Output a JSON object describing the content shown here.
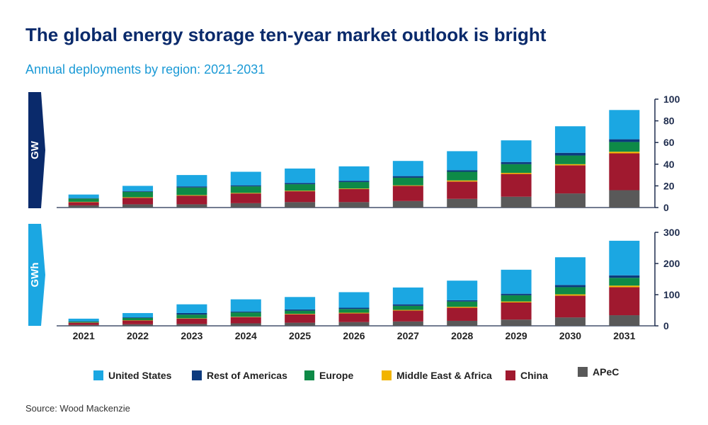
{
  "title": "The global energy storage ten-year market outlook is bright",
  "subtitle": "Annual deployments  by region: 2021-2031",
  "source": "Source: Wood Mackenzie",
  "colors": {
    "United States": "#1ba7e2",
    "Rest of Americas": "#0c3a7d",
    "Europe": "#0e8a47",
    "Middle East & Africa": "#f2b400",
    "China": "#a0192f",
    "APeC": "#595959"
  },
  "legend": [
    "United States",
    "Rest of Americas",
    "Europe",
    "Middle East & Africa",
    "China",
    "APeC"
  ],
  "chart_data": [
    {
      "type": "bar",
      "stacked": true,
      "unit_label": "GW",
      "categories": [
        "2021",
        "2022",
        "2023",
        "2024",
        "2025",
        "2026",
        "2027",
        "2028",
        "2029",
        "2030",
        "2031"
      ],
      "ylim": [
        0,
        100
      ],
      "yticks": [
        0,
        20,
        40,
        60,
        80,
        100
      ],
      "series": [
        {
          "name": "APeC",
          "values": [
            2,
            3,
            3,
            4,
            5,
            5,
            6,
            8,
            10,
            13,
            16
          ]
        },
        {
          "name": "China",
          "values": [
            3,
            6,
            8,
            9,
            10,
            12,
            14,
            16,
            21,
            26,
            34
          ]
        },
        {
          "name": "Middle East & Africa",
          "values": [
            0.3,
            0.5,
            0.5,
            0.5,
            0.5,
            0.5,
            0.5,
            1,
            1,
            1,
            1.5
          ]
        },
        {
          "name": "Europe",
          "values": [
            3,
            5,
            7,
            6,
            6,
            6,
            7,
            8,
            8,
            8,
            9
          ]
        },
        {
          "name": "Rest of Americas",
          "values": [
            0.4,
            0.7,
            1,
            1,
            1.2,
            1.2,
            1.5,
            1.5,
            2,
            2.5,
            2.5
          ]
        },
        {
          "name": "United States",
          "values": [
            3.3,
            4.8,
            10.5,
            12.5,
            13.3,
            13.3,
            14,
            17.5,
            20,
            24.5,
            27
          ]
        }
      ]
    },
    {
      "type": "bar",
      "stacked": true,
      "unit_label": "GWh",
      "categories": [
        "2021",
        "2022",
        "2023",
        "2024",
        "2025",
        "2026",
        "2027",
        "2028",
        "2029",
        "2030",
        "2031"
      ],
      "ylim": [
        0,
        300
      ],
      "yticks": [
        0,
        100,
        200,
        300
      ],
      "series": [
        {
          "name": "APeC",
          "values": [
            3,
            5,
            6,
            8,
            10,
            12,
            14,
            16,
            20,
            27,
            34
          ]
        },
        {
          "name": "China",
          "values": [
            7,
            12,
            17,
            20,
            27,
            28,
            35,
            42,
            55,
            70,
            90
          ]
        },
        {
          "name": "Middle East & Africa",
          "values": [
            0.5,
            1,
            1,
            1,
            1.5,
            2,
            2,
            3,
            3,
            4,
            5
          ]
        },
        {
          "name": "Europe",
          "values": [
            3,
            7,
            12,
            14,
            10,
            12,
            13,
            17,
            20,
            23,
            25
          ]
        },
        {
          "name": "Rest of Americas",
          "values": [
            1,
            2,
            5,
            3,
            4,
            4,
            5,
            4,
            5,
            7,
            8
          ]
        },
        {
          "name": "United States",
          "values": [
            8.5,
            14,
            28,
            39,
            40,
            50,
            54,
            63,
            77,
            89,
            111
          ]
        }
      ]
    }
  ]
}
